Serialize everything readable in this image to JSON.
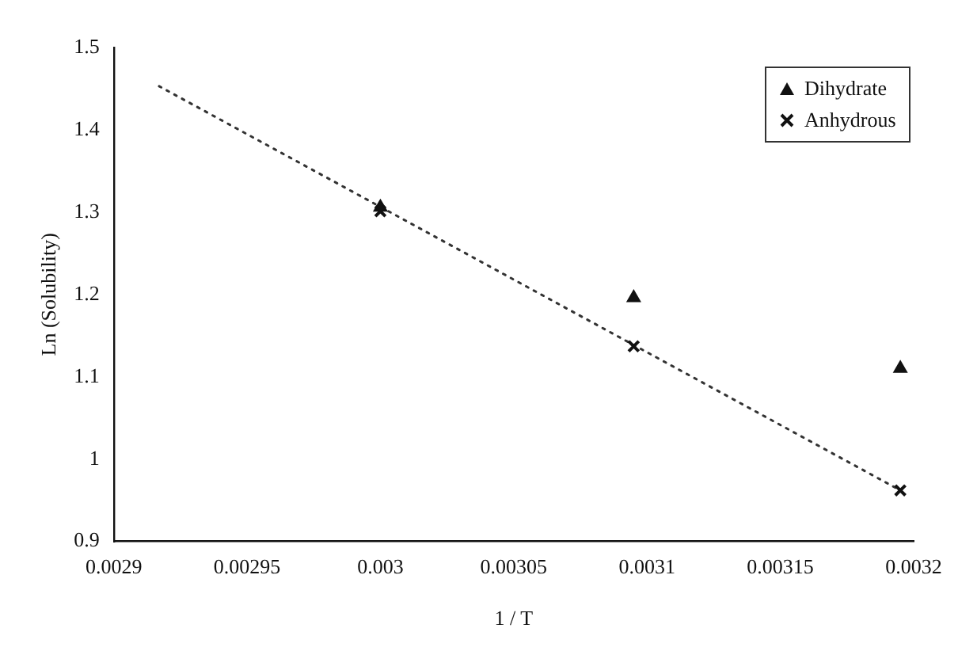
{
  "chart_data": {
    "type": "scatter",
    "xlabel": "1 / T",
    "ylabel": "Ln (Solubility)",
    "xlim": [
      0.0029,
      0.0032
    ],
    "xticks": [
      0.0029,
      0.00295,
      0.003,
      0.00305,
      0.0031,
      0.00315,
      0.0032
    ],
    "ylim": [
      0.9,
      1.5
    ],
    "yticks": [
      0.9,
      1,
      1.1,
      1.2,
      1.3,
      1.4,
      1.5
    ],
    "grid": false,
    "legend": "top right",
    "series": [
      {
        "name": "Dihydrate",
        "color": "#111111",
        "marker": "triangle",
        "x": [
          0.003,
          0.003095,
          0.003195
        ],
        "values": [
          1.306,
          1.196,
          1.11
        ]
      },
      {
        "name": "Anhydrous",
        "color": "#111111",
        "marker": "cross",
        "x": [
          0.003,
          0.003095,
          0.003195
        ],
        "values": [
          1.301,
          1.137,
          0.962
        ]
      },
      {
        "type": "line",
        "color": "#333333",
        "line_style": "dotted",
        "marker": "none",
        "x": [
          0.002917,
          0.003195
        ],
        "values": [
          1.453,
          0.962
        ]
      }
    ]
  }
}
